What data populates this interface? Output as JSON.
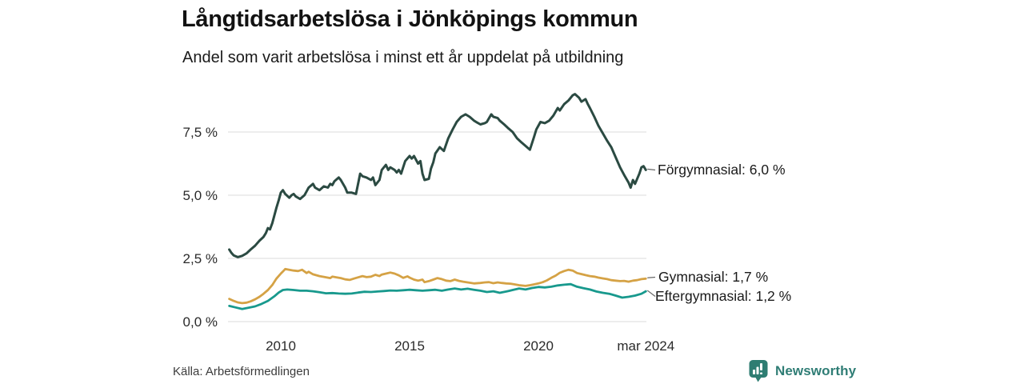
{
  "header": {
    "title": "Långtidsarbetslösa i Jönköpings kommun",
    "subtitle": "Andel som varit arbetslösa i minst ett år uppdelat på utbildning"
  },
  "source": {
    "label": "Källa: Arbetsförmedlingen"
  },
  "branding": {
    "name": "Newsworthy",
    "icon": "newsworthy-chart-bubble-icon",
    "color": "#2f7d75"
  },
  "colors": {
    "grid": "#e2e2e2",
    "axis_text": "#2a2a2a",
    "annotation_text": "#1a1a1a",
    "connector": "#666666",
    "background": "#ffffff"
  },
  "chart_data": {
    "type": "line",
    "title": "Långtidsarbetslösa i Jönköpings kommun",
    "subtitle": "Andel som varit arbetslösa i minst ett år uppdelat på utbildning",
    "xlabel": "",
    "ylabel": "",
    "x_unit": "decimal_year_monthly",
    "xlim": [
      2008.0,
      2024.17
    ],
    "ylim": [
      0,
      9.5
    ],
    "grid": "horizontal",
    "legend_position": "right-end-labels",
    "y_ticks": [
      {
        "value": 0.0,
        "label": "0,0 %"
      },
      {
        "value": 2.5,
        "label": "2,5 %"
      },
      {
        "value": 5.0,
        "label": "5,0 %"
      },
      {
        "value": 7.5,
        "label": "7,5 %"
      }
    ],
    "x_ticks": [
      {
        "value": 2010.0,
        "label": "2010"
      },
      {
        "value": 2015.0,
        "label": "2015"
      },
      {
        "value": 2020.0,
        "label": "2020"
      },
      {
        "value": 2024.17,
        "label": "mar 2024"
      }
    ],
    "series": [
      {
        "name": "Förgymnasial",
        "end_label": "Förgymnasial: 6,0 %",
        "latest_value": "6,0 %",
        "color": "#2b4a42",
        "width": 3,
        "x": [
          2008.0,
          2008.08,
          2008.17,
          2008.33,
          2008.5,
          2008.67,
          2008.83,
          2009.0,
          2009.17,
          2009.33,
          2009.42,
          2009.5,
          2009.58,
          2009.67,
          2009.83,
          2009.92,
          2010.0,
          2010.08,
          2010.17,
          2010.33,
          2010.42,
          2010.5,
          2010.58,
          2010.75,
          2010.92,
          2011.0,
          2011.08,
          2011.25,
          2011.33,
          2011.5,
          2011.67,
          2011.83,
          2011.92,
          2012.0,
          2012.08,
          2012.25,
          2012.33,
          2012.5,
          2012.58,
          2012.75,
          2012.92,
          2013.0,
          2013.08,
          2013.17,
          2013.33,
          2013.5,
          2013.58,
          2013.67,
          2013.83,
          2013.92,
          2014.08,
          2014.17,
          2014.25,
          2014.42,
          2014.5,
          2014.58,
          2014.67,
          2014.83,
          2015.0,
          2015.08,
          2015.17,
          2015.33,
          2015.42,
          2015.5,
          2015.58,
          2015.75,
          2015.83,
          2015.92,
          2016.0,
          2016.17,
          2016.33,
          2016.5,
          2016.67,
          2016.83,
          2017.0,
          2017.17,
          2017.33,
          2017.5,
          2017.58,
          2017.75,
          2017.92,
          2018.0,
          2018.17,
          2018.25,
          2018.42,
          2018.5,
          2018.67,
          2018.83,
          2019.0,
          2019.17,
          2019.33,
          2019.5,
          2019.67,
          2019.83,
          2019.92,
          2020.0,
          2020.08,
          2020.25,
          2020.42,
          2020.58,
          2020.75,
          2020.83,
          2021.0,
          2021.17,
          2021.33,
          2021.42,
          2021.58,
          2021.67,
          2021.83,
          2021.92,
          2022.0,
          2022.17,
          2022.33,
          2022.5,
          2022.67,
          2022.83,
          2023.0,
          2023.17,
          2023.33,
          2023.5,
          2023.58,
          2023.67,
          2023.75,
          2023.92,
          2024.0,
          2024.08,
          2024.17
        ],
        "y": [
          2.85,
          2.72,
          2.62,
          2.55,
          2.6,
          2.7,
          2.85,
          3.0,
          3.2,
          3.35,
          3.5,
          3.7,
          3.65,
          3.9,
          4.5,
          4.8,
          5.1,
          5.2,
          5.05,
          4.9,
          5.0,
          5.05,
          4.95,
          4.85,
          5.0,
          5.15,
          5.3,
          5.45,
          5.3,
          5.2,
          5.35,
          5.3,
          5.45,
          5.4,
          5.55,
          5.7,
          5.6,
          5.3,
          5.1,
          5.1,
          5.05,
          5.45,
          5.85,
          5.75,
          5.7,
          5.6,
          5.7,
          5.4,
          5.6,
          6.0,
          6.2,
          6.0,
          6.1,
          6.0,
          5.9,
          6.0,
          5.85,
          6.35,
          6.55,
          6.45,
          6.55,
          6.25,
          6.35,
          5.85,
          5.6,
          5.65,
          6.05,
          6.3,
          6.65,
          6.9,
          6.75,
          7.25,
          7.6,
          7.9,
          8.1,
          8.2,
          8.1,
          7.95,
          7.9,
          7.8,
          7.85,
          7.9,
          8.2,
          8.1,
          8.05,
          7.95,
          7.8,
          7.65,
          7.5,
          7.25,
          7.1,
          6.95,
          6.8,
          7.3,
          7.6,
          7.75,
          7.9,
          7.85,
          7.95,
          8.15,
          8.45,
          8.35,
          8.6,
          8.75,
          8.95,
          9.0,
          8.85,
          8.7,
          8.8,
          8.6,
          8.45,
          8.1,
          7.75,
          7.45,
          7.15,
          6.9,
          6.5,
          6.1,
          5.8,
          5.5,
          5.3,
          5.6,
          5.45,
          5.85,
          6.1,
          6.15,
          6.0
        ]
      },
      {
        "name": "Gymnasial",
        "end_label": "Gymnasial: 1,7 %",
        "latest_value": "1,7 %",
        "color": "#d5a245",
        "width": 2.8,
        "x": [
          2008.0,
          2008.17,
          2008.33,
          2008.5,
          2008.67,
          2008.83,
          2009.0,
          2009.17,
          2009.33,
          2009.5,
          2009.67,
          2009.83,
          2010.0,
          2010.08,
          2010.17,
          2010.33,
          2010.5,
          2010.67,
          2010.83,
          2011.0,
          2011.08,
          2011.25,
          2011.5,
          2011.67,
          2011.92,
          2012.0,
          2012.17,
          2012.33,
          2012.5,
          2012.67,
          2012.83,
          2013.0,
          2013.17,
          2013.33,
          2013.5,
          2013.67,
          2013.83,
          2013.92,
          2014.08,
          2014.25,
          2014.42,
          2014.58,
          2014.75,
          2014.92,
          2015.0,
          2015.17,
          2015.33,
          2015.5,
          2015.58,
          2015.75,
          2015.92,
          2016.08,
          2016.25,
          2016.42,
          2016.58,
          2016.75,
          2016.92,
          2017.08,
          2017.25,
          2017.5,
          2017.75,
          2017.92,
          2018.08,
          2018.25,
          2018.42,
          2018.58,
          2018.75,
          2018.92,
          2019.08,
          2019.25,
          2019.5,
          2019.67,
          2019.83,
          2020.0,
          2020.17,
          2020.33,
          2020.5,
          2020.67,
          2020.83,
          2021.0,
          2021.17,
          2021.33,
          2021.5,
          2021.67,
          2021.83,
          2022.0,
          2022.17,
          2022.33,
          2022.5,
          2022.67,
          2022.83,
          2023.0,
          2023.17,
          2023.33,
          2023.5,
          2023.67,
          2023.83,
          2024.0,
          2024.17
        ],
        "y": [
          0.9,
          0.82,
          0.76,
          0.73,
          0.75,
          0.8,
          0.88,
          0.98,
          1.1,
          1.25,
          1.45,
          1.7,
          1.9,
          1.98,
          2.08,
          2.05,
          2.02,
          2.0,
          2.05,
          1.92,
          1.97,
          1.87,
          1.8,
          1.77,
          1.72,
          1.78,
          1.75,
          1.72,
          1.67,
          1.65,
          1.7,
          1.75,
          1.8,
          1.76,
          1.78,
          1.85,
          1.8,
          1.86,
          1.9,
          1.94,
          1.9,
          1.83,
          1.73,
          1.79,
          1.74,
          1.66,
          1.62,
          1.66,
          1.56,
          1.6,
          1.66,
          1.72,
          1.68,
          1.62,
          1.6,
          1.66,
          1.61,
          1.58,
          1.55,
          1.51,
          1.53,
          1.55,
          1.56,
          1.52,
          1.55,
          1.53,
          1.51,
          1.5,
          1.47,
          1.44,
          1.41,
          1.44,
          1.47,
          1.51,
          1.56,
          1.63,
          1.73,
          1.82,
          1.93,
          2.0,
          2.05,
          2.02,
          1.92,
          1.88,
          1.84,
          1.8,
          1.78,
          1.74,
          1.71,
          1.68,
          1.64,
          1.62,
          1.6,
          1.61,
          1.58,
          1.62,
          1.64,
          1.68,
          1.7
        ]
      },
      {
        "name": "Eftergymnasial",
        "end_label": "Eftergymnasial: 1,2 %",
        "latest_value": "1,2 %",
        "color": "#18998d",
        "width": 2.8,
        "x": [
          2008.0,
          2008.25,
          2008.5,
          2008.75,
          2009.0,
          2009.25,
          2009.5,
          2009.75,
          2009.92,
          2010.08,
          2010.25,
          2010.5,
          2010.75,
          2011.0,
          2011.25,
          2011.5,
          2011.75,
          2012.0,
          2012.25,
          2012.5,
          2012.75,
          2013.0,
          2013.25,
          2013.5,
          2013.75,
          2014.0,
          2014.25,
          2014.5,
          2014.75,
          2015.0,
          2015.25,
          2015.5,
          2015.75,
          2016.0,
          2016.25,
          2016.5,
          2016.75,
          2017.0,
          2017.25,
          2017.5,
          2017.75,
          2018.0,
          2018.25,
          2018.5,
          2018.75,
          2019.0,
          2019.25,
          2019.5,
          2019.75,
          2020.0,
          2020.25,
          2020.5,
          2020.75,
          2021.0,
          2021.25,
          2021.5,
          2021.75,
          2022.0,
          2022.25,
          2022.5,
          2022.75,
          2023.0,
          2023.25,
          2023.5,
          2023.75,
          2024.0,
          2024.17
        ],
        "y": [
          0.62,
          0.56,
          0.5,
          0.55,
          0.6,
          0.7,
          0.82,
          1.0,
          1.15,
          1.25,
          1.27,
          1.25,
          1.22,
          1.22,
          1.2,
          1.16,
          1.12,
          1.13,
          1.11,
          1.1,
          1.11,
          1.15,
          1.18,
          1.17,
          1.19,
          1.21,
          1.23,
          1.22,
          1.24,
          1.26,
          1.24,
          1.22,
          1.24,
          1.26,
          1.22,
          1.27,
          1.31,
          1.27,
          1.3,
          1.26,
          1.22,
          1.17,
          1.2,
          1.14,
          1.19,
          1.25,
          1.31,
          1.27,
          1.33,
          1.37,
          1.35,
          1.38,
          1.43,
          1.46,
          1.48,
          1.38,
          1.32,
          1.27,
          1.19,
          1.14,
          1.1,
          1.03,
          0.95,
          0.98,
          1.03,
          1.1,
          1.2
        ]
      }
    ]
  }
}
